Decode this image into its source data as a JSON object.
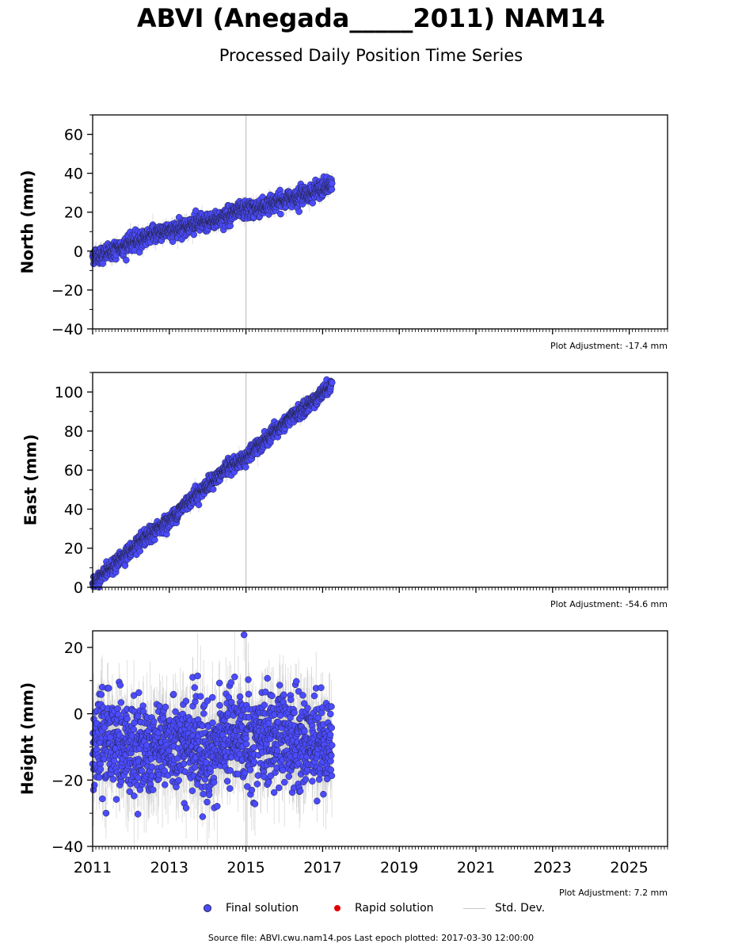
{
  "title": "ABVI (Anegada_____2011) NAM14",
  "subtitle": "Processed Daily Position Time Series",
  "colors": {
    "final": "#4b4bff",
    "final_edge": "#222244",
    "rapid": "#e00000",
    "std_dev": "#c8c8c8",
    "marker_line": "#cccccc"
  },
  "legend": {
    "final": "Final solution",
    "rapid": "Rapid solution",
    "std": "Std. Dev."
  },
  "footer": "Source file: ABVI.cwu.nam14.pos  Last epoch plotted: 2017-03-30 12:00:00",
  "chart_data": [
    {
      "type": "scatter",
      "ylabel": "North (mm)",
      "adjustment": "Plot Adjustment: -17.4 mm",
      "xlim": [
        2011,
        2026
      ],
      "ylim": [
        -40,
        70
      ],
      "yticks": [
        -40,
        -20,
        0,
        20,
        40,
        60
      ],
      "ytick_labels": [
        "−40",
        "−20",
        "0",
        "20",
        "40",
        "60"
      ],
      "vline": 2015,
      "series": [
        {
          "x": [
            2011.0,
            2011.25,
            2011.5,
            2011.75,
            2012.0,
            2012.25,
            2012.5,
            2012.75,
            2013.0,
            2013.25,
            2013.5,
            2013.75,
            2014.0,
            2014.25,
            2014.5,
            2014.75,
            2015.0,
            2015.25,
            2015.5,
            2015.75,
            2016.0,
            2016.25,
            2016.5,
            2016.75,
            2017.0,
            2017.25
          ],
          "y": [
            -2,
            -2,
            0,
            2,
            4,
            6,
            8,
            10,
            10,
            12,
            13,
            14,
            15,
            16,
            18,
            20,
            21,
            22,
            23,
            25,
            26,
            28,
            29,
            30,
            32,
            34
          ],
          "scatter": 2.2
        }
      ]
    },
    {
      "type": "scatter",
      "ylabel": "East (mm)",
      "adjustment": "Plot Adjustment: -54.6 mm",
      "xlim": [
        2011,
        2026
      ],
      "ylim": [
        0,
        110
      ],
      "yticks": [
        0,
        20,
        40,
        60,
        80,
        100
      ],
      "ytick_labels": [
        "0",
        "20",
        "40",
        "60",
        "80",
        "100"
      ],
      "vline": 2015,
      "series": [
        {
          "x": [
            2011.0,
            2011.25,
            2011.5,
            2011.75,
            2012.0,
            2012.25,
            2012.5,
            2012.75,
            2013.0,
            2013.25,
            2013.5,
            2013.75,
            2014.0,
            2014.25,
            2014.5,
            2014.75,
            2015.0,
            2015.25,
            2015.5,
            2015.75,
            2016.0,
            2016.25,
            2016.5,
            2016.75,
            2017.0,
            2017.25
          ],
          "y": [
            2,
            6,
            10,
            15,
            19,
            23,
            27,
            31,
            34,
            39,
            44,
            48,
            52,
            56,
            61,
            64,
            66,
            71,
            75,
            79,
            84,
            88,
            91,
            95,
            100,
            104
          ],
          "scatter": 1.8
        }
      ]
    },
    {
      "type": "scatter",
      "ylabel": "Height (mm)",
      "adjustment": "Plot Adjustment: 7.2 mm",
      "xlim": [
        2011,
        2026
      ],
      "ylim": [
        -40,
        25
      ],
      "yticks": [
        -40,
        -20,
        0,
        20
      ],
      "ytick_labels": [
        "−40",
        "−20",
        "0",
        "20"
      ],
      "xticks": [
        2011,
        2013,
        2015,
        2017,
        2019,
        2021,
        2023,
        2025
      ],
      "xtick_labels": [
        "2011",
        "2013",
        "2015",
        "2017",
        "2019",
        "2021",
        "2023",
        "2025"
      ],
      "vline": 2015,
      "series": [
        {
          "x": [
            2011.0,
            2011.25,
            2011.5,
            2011.75,
            2012.0,
            2012.25,
            2012.5,
            2012.75,
            2013.0,
            2013.25,
            2013.5,
            2013.75,
            2014.0,
            2014.25,
            2014.5,
            2014.75,
            2015.0,
            2015.25,
            2015.5,
            2015.75,
            2016.0,
            2016.25,
            2016.5,
            2016.75,
            2017.0,
            2017.25
          ],
          "y": [
            -9,
            -9,
            -10,
            -8,
            -11,
            -10,
            -9,
            -8,
            -10,
            -10,
            -9,
            -11,
            -12,
            -11,
            -6,
            -7,
            -6,
            -8,
            -7,
            -8,
            -7,
            -8,
            -9,
            -8,
            -9,
            -8
          ],
          "scatter": 7.0
        }
      ]
    }
  ]
}
